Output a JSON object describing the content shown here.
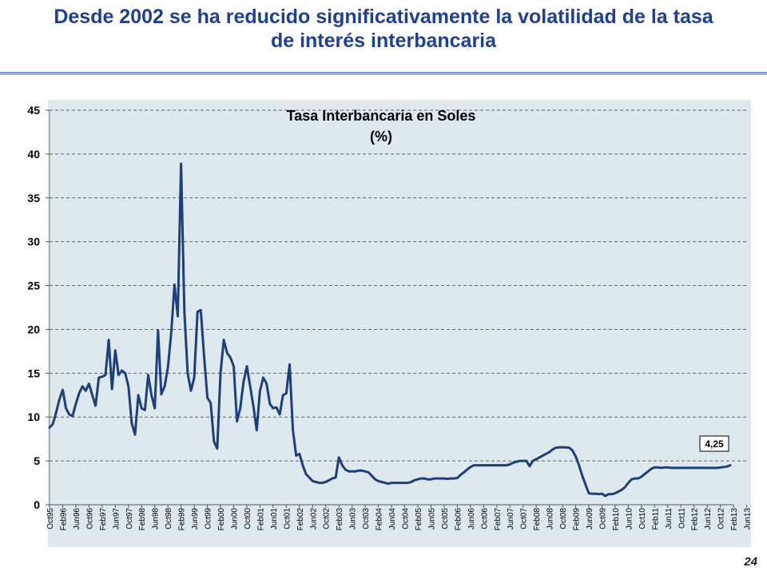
{
  "slide": {
    "title_line1": "Desde 2002 se ha reducido significativamente la volatilidad de la tasa",
    "title_line2": "de interés interbancaria",
    "page_number": "24"
  },
  "colors": {
    "title": "#1f3f8f",
    "plot_bg": "#dde9ee",
    "line": "#1f3f7a",
    "grid": "#666666"
  },
  "chart_data": {
    "type": "line",
    "title_line1": "Tasa Interbancaria en Soles",
    "title_line2": "(%)",
    "xlabel": "",
    "ylabel": "",
    "ylim": [
      0,
      45
    ],
    "yticks": [
      0,
      5,
      10,
      15,
      20,
      25,
      30,
      35,
      40,
      45
    ],
    "grid": true,
    "x_start": "Oct95",
    "x_end": "Sep13",
    "xtick_labels": [
      "Oct95",
      "Feb96",
      "Jun96",
      "Oct96",
      "Feb97",
      "Jun97",
      "Oct97",
      "Feb98",
      "Jun98",
      "Oct98",
      "Feb99",
      "Jun99",
      "Oct99",
      "Feb00",
      "Jun00",
      "Oct00",
      "Feb01",
      "Jun01",
      "Oct01",
      "Feb02",
      "Jun02",
      "Oct02",
      "Feb03",
      "Jun03",
      "Oct03",
      "Feb04",
      "Jun04",
      "Oct04",
      "Feb05",
      "Jun05",
      "Oct05",
      "Feb06",
      "Jun06",
      "Oct06",
      "Feb07",
      "Jun07",
      "Oct07",
      "Feb08",
      "Jun08",
      "Oct08",
      "Feb09",
      "Jun09",
      "Oct09",
      "Feb10",
      "Jun10",
      "Oct10",
      "Feb11",
      "Jun11",
      "Oct11",
      "Feb12",
      "Jun12",
      "Oct12",
      "Feb13",
      "Jun13"
    ],
    "annotation": "4,25",
    "series": [
      {
        "name": "Tasa Interbancaria en Soles",
        "points": [
          [
            0,
            8.8
          ],
          [
            1,
            9.2
          ],
          [
            2,
            10.5
          ],
          [
            3,
            12
          ],
          [
            4,
            13.1
          ],
          [
            5,
            11
          ],
          [
            6,
            10.3
          ],
          [
            7,
            10.1
          ],
          [
            8,
            11.5
          ],
          [
            9,
            12.7
          ],
          [
            10,
            13.5
          ],
          [
            11,
            13
          ],
          [
            12,
            13.8
          ],
          [
            13,
            12.5
          ],
          [
            14,
            11.3
          ],
          [
            15,
            14.5
          ],
          [
            16,
            14.6
          ],
          [
            17,
            14.8
          ],
          [
            18,
            18.8
          ],
          [
            19,
            13.2
          ],
          [
            20,
            17.6
          ],
          [
            21,
            14.8
          ],
          [
            22,
            15.3
          ],
          [
            23,
            15
          ],
          [
            24,
            13.5
          ],
          [
            25,
            9.3
          ],
          [
            26,
            8
          ],
          [
            27,
            12.5
          ],
          [
            28,
            11
          ],
          [
            29,
            10.8
          ],
          [
            30,
            14.8
          ],
          [
            31,
            12.5
          ],
          [
            32,
            11
          ],
          [
            33,
            19.9
          ],
          [
            34,
            12.6
          ],
          [
            35,
            13.5
          ],
          [
            36,
            15.7
          ],
          [
            37,
            19.6
          ],
          [
            38,
            25.1
          ],
          [
            39,
            21.5
          ],
          [
            40,
            38.9
          ],
          [
            41,
            22
          ],
          [
            42,
            15
          ],
          [
            43,
            13
          ],
          [
            44,
            14.5
          ],
          [
            45,
            22
          ],
          [
            46,
            22.2
          ],
          [
            47,
            17
          ],
          [
            48,
            12.2
          ],
          [
            49,
            11.6
          ],
          [
            50,
            7.2
          ],
          [
            51,
            6.4
          ],
          [
            52,
            15
          ],
          [
            53,
            18.8
          ],
          [
            54,
            17.3
          ],
          [
            55,
            16.8
          ],
          [
            56,
            15.8
          ],
          [
            57,
            9.5
          ],
          [
            58,
            11
          ],
          [
            59,
            14
          ],
          [
            60,
            15.8
          ],
          [
            61,
            13.5
          ],
          [
            62,
            11.2
          ],
          [
            63,
            8.5
          ],
          [
            64,
            13
          ],
          [
            65,
            14.5
          ],
          [
            66,
            13.8
          ],
          [
            67,
            11.5
          ],
          [
            68,
            11
          ],
          [
            69,
            11.1
          ],
          [
            70,
            10.3
          ],
          [
            71,
            12.5
          ],
          [
            72,
            12.7
          ],
          [
            73,
            16
          ],
          [
            74,
            8.5
          ],
          [
            75,
            5.6
          ],
          [
            76,
            5.8
          ],
          [
            77,
            4.5
          ],
          [
            78,
            3.5
          ],
          [
            79,
            3.1
          ],
          [
            80,
            2.7
          ],
          [
            81,
            2.6
          ],
          [
            82,
            2.5
          ],
          [
            83,
            2.5
          ],
          [
            84,
            2.6
          ],
          [
            85,
            2.8
          ],
          [
            86,
            3.0
          ],
          [
            87,
            3.1
          ],
          [
            88,
            5.4
          ],
          [
            89,
            4.5
          ],
          [
            90,
            4.0
          ],
          [
            91,
            3.8
          ],
          [
            92,
            3.8
          ],
          [
            93,
            3.8
          ],
          [
            94,
            3.9
          ],
          [
            95,
            3.9
          ],
          [
            96,
            3.8
          ],
          [
            97,
            3.7
          ],
          [
            98,
            3.3
          ],
          [
            99,
            2.9
          ],
          [
            100,
            2.7
          ],
          [
            101,
            2.6
          ],
          [
            102,
            2.5
          ],
          [
            103,
            2.4
          ],
          [
            104,
            2.5
          ],
          [
            105,
            2.5
          ],
          [
            106,
            2.5
          ],
          [
            107,
            2.5
          ],
          [
            108,
            2.5
          ],
          [
            109,
            2.5
          ],
          [
            110,
            2.6
          ],
          [
            111,
            2.8
          ],
          [
            112,
            2.9
          ],
          [
            113,
            3.0
          ],
          [
            114,
            3.0
          ],
          [
            115,
            2.9
          ],
          [
            116,
            2.9
          ],
          [
            117,
            3.0
          ],
          [
            118,
            3.0
          ],
          [
            119,
            3.0
          ],
          [
            120,
            3.0
          ],
          [
            121,
            2.95
          ],
          [
            122,
            3.0
          ],
          [
            123,
            3.0
          ],
          [
            124,
            3.05
          ],
          [
            125,
            3.4
          ],
          [
            126,
            3.7
          ],
          [
            127,
            4.0
          ],
          [
            128,
            4.3
          ],
          [
            129,
            4.5
          ],
          [
            130,
            4.5
          ],
          [
            131,
            4.5
          ],
          [
            132,
            4.5
          ],
          [
            133,
            4.5
          ],
          [
            134,
            4.5
          ],
          [
            135,
            4.5
          ],
          [
            136,
            4.5
          ],
          [
            137,
            4.5
          ],
          [
            138,
            4.5
          ],
          [
            139,
            4.5
          ],
          [
            140,
            4.6
          ],
          [
            141,
            4.8
          ],
          [
            142,
            4.9
          ],
          [
            143,
            5.0
          ],
          [
            144,
            5.0
          ],
          [
            145,
            5.0
          ],
          [
            146,
            4.4
          ],
          [
            147,
            5.0
          ],
          [
            148,
            5.2
          ],
          [
            149,
            5.4
          ],
          [
            150,
            5.6
          ],
          [
            151,
            5.8
          ],
          [
            152,
            6.0
          ],
          [
            153,
            6.3
          ],
          [
            154,
            6.5
          ],
          [
            155,
            6.55
          ],
          [
            156,
            6.55
          ],
          [
            157,
            6.55
          ],
          [
            158,
            6.5
          ],
          [
            159,
            6.2
          ],
          [
            160,
            5.5
          ],
          [
            161,
            4.5
          ],
          [
            162,
            3.3
          ],
          [
            163,
            2.3
          ],
          [
            164,
            1.3
          ],
          [
            165,
            1.25
          ],
          [
            166,
            1.25
          ],
          [
            167,
            1.2
          ],
          [
            168,
            1.25
          ],
          [
            169,
            1.0
          ],
          [
            170,
            1.2
          ],
          [
            171,
            1.2
          ],
          [
            172,
            1.3
          ],
          [
            173,
            1.5
          ],
          [
            174,
            1.7
          ],
          [
            175,
            2.0
          ],
          [
            176,
            2.5
          ],
          [
            177,
            2.9
          ],
          [
            178,
            3.0
          ],
          [
            179,
            3.0
          ],
          [
            180,
            3.2
          ],
          [
            181,
            3.5
          ],
          [
            182,
            3.8
          ],
          [
            183,
            4.1
          ],
          [
            184,
            4.25
          ],
          [
            185,
            4.25
          ],
          [
            186,
            4.2
          ],
          [
            187,
            4.25
          ],
          [
            188,
            4.25
          ],
          [
            189,
            4.2
          ],
          [
            190,
            4.2
          ],
          [
            191,
            4.2
          ],
          [
            192,
            4.2
          ],
          [
            193,
            4.2
          ],
          [
            194,
            4.2
          ],
          [
            195,
            4.2
          ],
          [
            196,
            4.2
          ],
          [
            197,
            4.2
          ],
          [
            198,
            4.2
          ],
          [
            199,
            4.2
          ],
          [
            200,
            4.2
          ],
          [
            201,
            4.2
          ],
          [
            202,
            4.2
          ],
          [
            203,
            4.2
          ],
          [
            204,
            4.25
          ],
          [
            205,
            4.3
          ],
          [
            206,
            4.35
          ],
          [
            207,
            4.5
          ]
        ]
      }
    ]
  }
}
